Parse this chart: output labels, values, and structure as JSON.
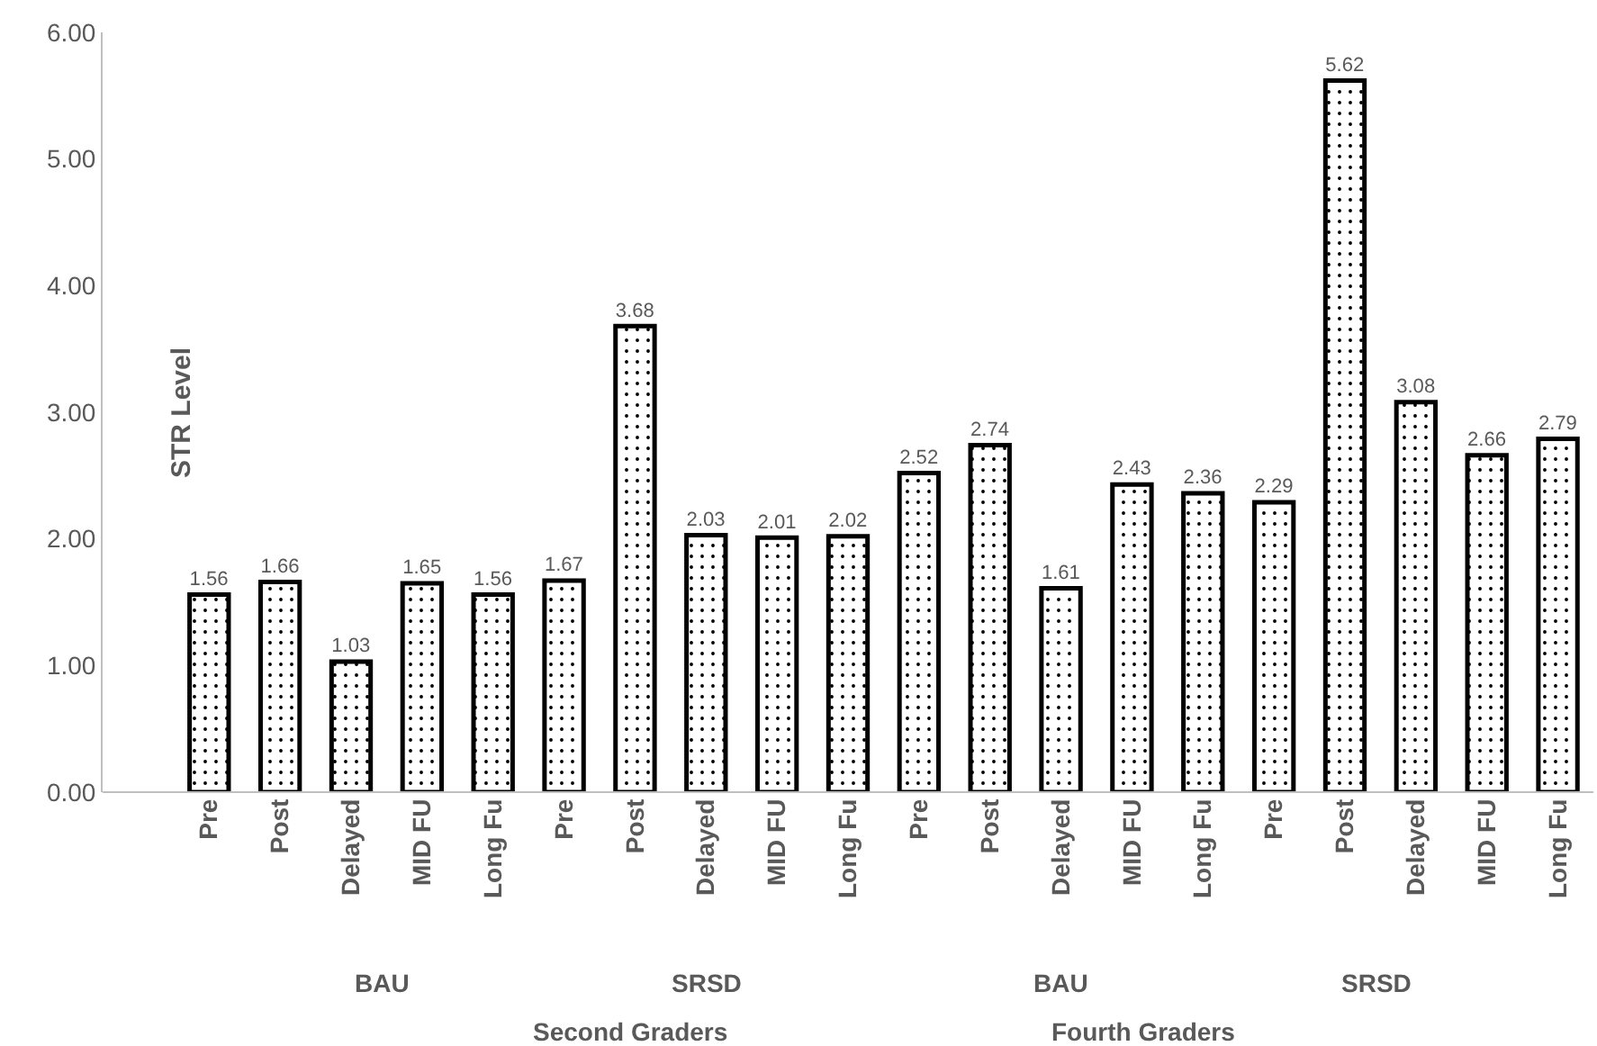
{
  "chart_data": {
    "type": "bar",
    "ylabel": "STR Level",
    "categories": [
      null,
      "Pre",
      "Post",
      "Delayed",
      "MID FU",
      "Long Fu",
      "Pre",
      "Post",
      "Delayed",
      "MID FU",
      "Long Fu",
      "Pre",
      "Post",
      "Delayed",
      "MID FU",
      "Long Fu",
      "Pre",
      "Post",
      "Delayed",
      "MID FU",
      "Long Fu"
    ],
    "values": [
      null,
      1.56,
      1.66,
      1.03,
      1.65,
      1.56,
      1.67,
      3.68,
      2.03,
      2.01,
      2.02,
      2.52,
      2.74,
      1.61,
      2.43,
      2.36,
      2.29,
      5.62,
      3.08,
      2.66,
      2.79
    ],
    "color": "#000000",
    "ylim": [
      0,
      6
    ],
    "yticks": [
      {
        "value": 0,
        "label": "0.00"
      },
      {
        "value": 1,
        "label": "1.00"
      },
      {
        "value": 2,
        "label": "2.00"
      },
      {
        "value": 3,
        "label": "3.00"
      },
      {
        "value": 4,
        "label": "4.00"
      },
      {
        "value": 5,
        "label": "5.00"
      },
      {
        "value": 6,
        "label": "6.00"
      }
    ],
    "grid": false,
    "legend": false,
    "data_labels": true,
    "annotations": [
      "BAU",
      "SRSD",
      "BAU",
      "SRSD",
      "Second Graders",
      "Fourth Graders"
    ]
  }
}
